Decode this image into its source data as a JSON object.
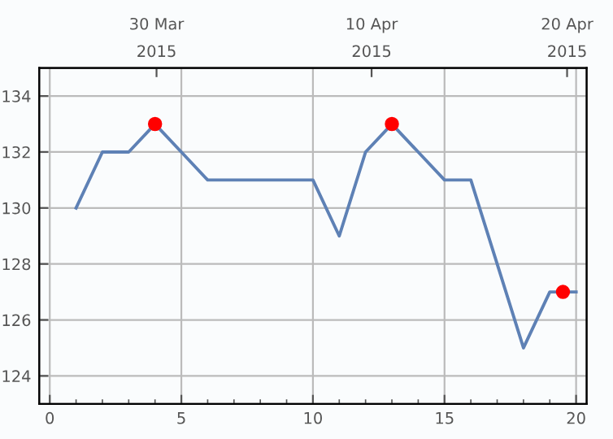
{
  "chart_data": {
    "type": "line",
    "x": [
      1,
      2,
      3,
      4,
      5,
      6,
      7,
      8,
      9,
      10,
      11,
      12,
      13,
      14,
      15,
      16,
      17,
      18,
      19,
      20
    ],
    "series": [
      {
        "color": "#5e81b5",
        "values": [
          130,
          132,
          132,
          133,
          132,
          131,
          131,
          131,
          131,
          131,
          129,
          132,
          133,
          132,
          131,
          131,
          128,
          125,
          127,
          127
        ]
      },
      {
        "type": "scatter",
        "marker": "circle",
        "color": "#ff0000",
        "x": [
          4,
          13,
          19.5
        ],
        "values": [
          133,
          133,
          127
        ]
      }
    ],
    "xlim": [
      -0.4,
      20.4
    ],
    "ylim": [
      123,
      135
    ],
    "xticks": [
      0,
      5,
      10,
      15,
      20
    ],
    "yticks": [
      124,
      126,
      128,
      130,
      132,
      134
    ],
    "x2lim": [
      "2015-03-24",
      "2015-04-21"
    ],
    "x2ticks": [
      {
        "value": "2015-03-30",
        "label": "30 Mar\n2015"
      },
      {
        "value": "2015-04-10",
        "label": "10 Apr\n2015"
      },
      {
        "value": "2015-04-20",
        "label": "20 Apr\n2015"
      }
    ],
    "grid": true,
    "line_style": "solid"
  }
}
